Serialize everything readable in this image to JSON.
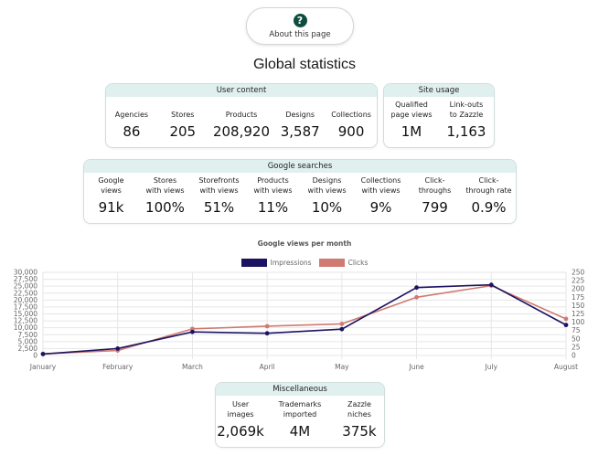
{
  "about": {
    "label": "About this page",
    "icon": "question-circle-icon"
  },
  "title": "Global statistics",
  "user_content": {
    "header": "User content",
    "stats": [
      {
        "label": "Agencies",
        "value": "86"
      },
      {
        "label": "Stores",
        "value": "205"
      },
      {
        "label": "Products",
        "value": "208,920"
      },
      {
        "label": "Designs",
        "value": "3,587"
      },
      {
        "label": "Collections",
        "value": "900"
      }
    ]
  },
  "site_usage": {
    "header": "Site usage",
    "stats": [
      {
        "label": "Qualified\npage views",
        "value": "1M"
      },
      {
        "label": "Link-outs\nto Zazzle",
        "value": "1,163"
      }
    ]
  },
  "google_searches": {
    "header": "Google searches",
    "stats": [
      {
        "label": "Google\nviews",
        "value": "91k"
      },
      {
        "label": "Stores\nwith views",
        "value": "100%"
      },
      {
        "label": "Storefronts\nwith views",
        "value": "51%"
      },
      {
        "label": "Products\nwith views",
        "value": "11%"
      },
      {
        "label": "Designs\nwith views",
        "value": "10%"
      },
      {
        "label": "Collections\nwith views",
        "value": "9%"
      },
      {
        "label": "Click-\nthroughs",
        "value": "799"
      },
      {
        "label": "Click-\nthrough rate",
        "value": "0.9%"
      }
    ]
  },
  "miscellaneous": {
    "header": "Miscellaneous",
    "stats": [
      {
        "label": "User\nimages",
        "value": "2,069k"
      },
      {
        "label": "Trademarks\nimported",
        "value": "4M"
      },
      {
        "label": "Zazzle\nniches",
        "value": "375k"
      }
    ]
  },
  "colors": {
    "impressions": "#1c1461",
    "clicks": "#d07a72",
    "header_bg": "#dff0ee"
  },
  "chart_data": {
    "type": "line",
    "title": "Google views per month",
    "categories": [
      "January",
      "February",
      "March",
      "April",
      "May",
      "June",
      "July",
      "August"
    ],
    "series": [
      {
        "name": "Impressions",
        "axis": "left",
        "values": [
          500,
          2500,
          8500,
          8000,
          9500,
          24500,
          25500,
          11000
        ]
      },
      {
        "name": "Clicks",
        "axis": "right",
        "values": [
          5,
          15,
          80,
          88,
          95,
          175,
          210,
          110
        ]
      }
    ],
    "y_left": {
      "range": [
        0,
        30000
      ],
      "ticks": [
        "0",
        "2,500",
        "5,000",
        "7,500",
        "10,000",
        "12,500",
        "15,000",
        "17,500",
        "20,000",
        "22,500",
        "25,000",
        "27,500",
        "30,000"
      ]
    },
    "y_right": {
      "range": [
        0,
        250
      ],
      "ticks": [
        "0",
        "25",
        "50",
        "75",
        "100",
        "125",
        "150",
        "175",
        "200",
        "225",
        "250"
      ]
    },
    "grid": true,
    "legend_position": "top"
  }
}
